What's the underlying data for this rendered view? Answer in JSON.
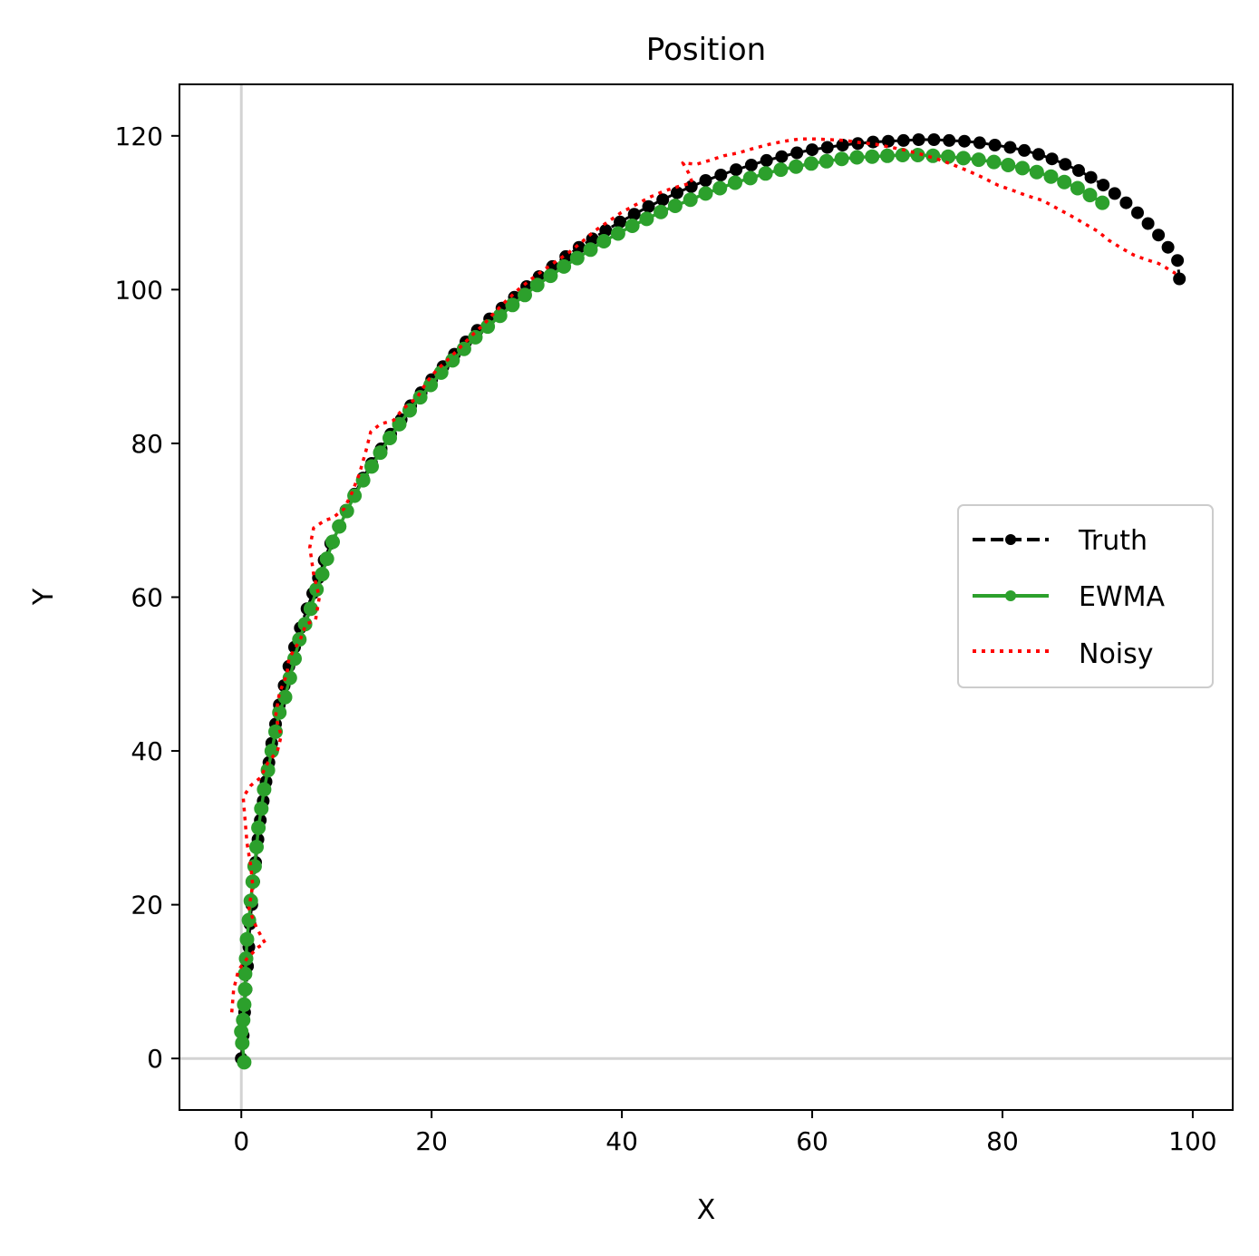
{
  "chart_data": {
    "type": "line",
    "title": "Position",
    "xlabel": "X",
    "ylabel": "Y",
    "xlim": [
      -6.5,
      104.2
    ],
    "ylim": [
      -6.7,
      126.7
    ],
    "xticks": [
      0,
      20,
      40,
      60,
      80,
      100
    ],
    "yticks": [
      0,
      20,
      40,
      60,
      80,
      100,
      120
    ],
    "grid": false,
    "reference_lines": {
      "x": 0,
      "y": 0,
      "color": "#d3d3d3"
    },
    "legend": {
      "position": "center-right",
      "entries": [
        "Truth",
        "EWMA",
        "Noisy"
      ]
    },
    "series": [
      {
        "name": "Truth",
        "color": "#000000",
        "style": "dashed-markers",
        "points": [
          [
            0.0,
            0.0
          ],
          [
            0.2,
            3.0
          ],
          [
            0.35,
            6.0
          ],
          [
            0.5,
            9.0
          ],
          [
            0.65,
            12.0
          ],
          [
            0.8,
            14.5
          ],
          [
            0.9,
            17.5
          ],
          [
            1.1,
            20.0
          ],
          [
            1.3,
            23.0
          ],
          [
            1.5,
            25.5
          ],
          [
            1.75,
            28.5
          ],
          [
            2.0,
            31.0
          ],
          [
            2.3,
            33.5
          ],
          [
            2.6,
            36.0
          ],
          [
            2.9,
            38.5
          ],
          [
            3.2,
            41.0
          ],
          [
            3.6,
            43.5
          ],
          [
            4.0,
            46.0
          ],
          [
            4.5,
            48.5
          ],
          [
            5.0,
            51.0
          ],
          [
            5.6,
            53.5
          ],
          [
            6.2,
            56.0
          ],
          [
            6.9,
            58.5
          ],
          [
            7.5,
            60.5
          ],
          [
            8.1,
            62.5
          ],
          [
            8.7,
            64.8
          ],
          [
            9.4,
            67.0
          ],
          [
            10.2,
            69.2
          ],
          [
            11.0,
            71.3
          ],
          [
            11.9,
            73.4
          ],
          [
            12.8,
            75.5
          ],
          [
            13.7,
            77.4
          ],
          [
            14.7,
            79.3
          ],
          [
            15.7,
            81.2
          ],
          [
            16.8,
            83.1
          ],
          [
            17.8,
            84.9
          ],
          [
            18.9,
            86.6
          ],
          [
            20.0,
            88.3
          ],
          [
            21.2,
            90.0
          ],
          [
            22.4,
            91.6
          ],
          [
            23.6,
            93.2
          ],
          [
            24.8,
            94.7
          ],
          [
            26.1,
            96.2
          ],
          [
            27.4,
            97.6
          ],
          [
            28.7,
            99.0
          ],
          [
            30.0,
            100.4
          ],
          [
            31.3,
            101.7
          ],
          [
            32.7,
            103.0
          ],
          [
            34.1,
            104.3
          ],
          [
            35.5,
            105.5
          ],
          [
            36.9,
            106.6
          ],
          [
            38.3,
            107.7
          ],
          [
            39.8,
            108.8
          ],
          [
            41.3,
            109.8
          ],
          [
            42.8,
            110.8
          ],
          [
            44.3,
            111.7
          ],
          [
            45.8,
            112.6
          ],
          [
            47.3,
            113.4
          ],
          [
            48.8,
            114.2
          ],
          [
            50.4,
            114.9
          ],
          [
            52.0,
            115.6
          ],
          [
            53.6,
            116.2
          ],
          [
            55.2,
            116.8
          ],
          [
            56.8,
            117.3
          ],
          [
            58.4,
            117.8
          ],
          [
            60.0,
            118.2
          ],
          [
            61.6,
            118.5
          ],
          [
            63.2,
            118.8
          ],
          [
            64.8,
            119.0
          ],
          [
            66.4,
            119.2
          ],
          [
            68.0,
            119.3
          ],
          [
            69.6,
            119.4
          ],
          [
            71.2,
            119.5
          ],
          [
            72.8,
            119.5
          ],
          [
            74.4,
            119.4
          ],
          [
            76.0,
            119.3
          ],
          [
            77.6,
            119.1
          ],
          [
            79.2,
            118.8
          ],
          [
            80.8,
            118.5
          ],
          [
            82.3,
            118.1
          ],
          [
            83.8,
            117.6
          ],
          [
            85.2,
            117.0
          ],
          [
            86.6,
            116.3
          ],
          [
            88.0,
            115.5
          ],
          [
            89.3,
            114.6
          ],
          [
            90.6,
            113.6
          ],
          [
            91.8,
            112.5
          ],
          [
            93.0,
            111.3
          ],
          [
            94.2,
            110.0
          ],
          [
            95.3,
            108.6
          ],
          [
            96.4,
            107.1
          ],
          [
            97.4,
            105.5
          ],
          [
            98.4,
            103.8
          ],
          [
            98.6,
            101.4
          ]
        ]
      },
      {
        "name": "EWMA",
        "color": "#2ca02c",
        "style": "solid-markers",
        "points": [
          [
            0.3,
            -0.5
          ],
          [
            0.1,
            2.0
          ],
          [
            0.0,
            3.5
          ],
          [
            0.2,
            5.0
          ],
          [
            0.3,
            7.0
          ],
          [
            0.4,
            9.0
          ],
          [
            0.4,
            11.0
          ],
          [
            0.5,
            13.0
          ],
          [
            0.6,
            15.5
          ],
          [
            0.8,
            18.0
          ],
          [
            1.0,
            20.5
          ],
          [
            1.2,
            23.0
          ],
          [
            1.4,
            25.0
          ],
          [
            1.6,
            27.5
          ],
          [
            1.8,
            30.0
          ],
          [
            2.1,
            32.5
          ],
          [
            2.4,
            35.0
          ],
          [
            2.8,
            37.5
          ],
          [
            3.2,
            40.0
          ],
          [
            3.6,
            42.5
          ],
          [
            4.0,
            45.0
          ],
          [
            4.6,
            47.0
          ],
          [
            5.1,
            49.5
          ],
          [
            5.6,
            52.0
          ],
          [
            6.1,
            54.5
          ],
          [
            6.7,
            56.5
          ],
          [
            7.3,
            58.5
          ],
          [
            7.9,
            61.0
          ],
          [
            8.5,
            63.0
          ],
          [
            9.0,
            65.0
          ],
          [
            9.6,
            67.2
          ],
          [
            10.3,
            69.2
          ],
          [
            11.1,
            71.2
          ],
          [
            11.9,
            73.2
          ],
          [
            12.8,
            75.2
          ],
          [
            13.7,
            77.0
          ],
          [
            14.6,
            78.8
          ],
          [
            15.6,
            80.7
          ],
          [
            16.6,
            82.5
          ],
          [
            17.7,
            84.3
          ],
          [
            18.8,
            86.0
          ],
          [
            19.9,
            87.6
          ],
          [
            21.0,
            89.2
          ],
          [
            22.2,
            90.8
          ],
          [
            23.4,
            92.3
          ],
          [
            24.6,
            93.8
          ],
          [
            25.9,
            95.2
          ],
          [
            27.2,
            96.6
          ],
          [
            28.5,
            98.0
          ],
          [
            29.8,
            99.3
          ],
          [
            31.1,
            100.6
          ],
          [
            32.5,
            101.8
          ],
          [
            33.9,
            103.0
          ],
          [
            35.3,
            104.1
          ],
          [
            36.7,
            105.2
          ],
          [
            38.1,
            106.3
          ],
          [
            39.6,
            107.3
          ],
          [
            41.1,
            108.3
          ],
          [
            42.6,
            109.2
          ],
          [
            44.1,
            110.1
          ],
          [
            45.6,
            110.9
          ],
          [
            47.2,
            111.7
          ],
          [
            48.8,
            112.5
          ],
          [
            50.3,
            113.2
          ],
          [
            51.9,
            113.9
          ],
          [
            53.5,
            114.5
          ],
          [
            55.1,
            115.1
          ],
          [
            56.7,
            115.6
          ],
          [
            58.3,
            116.0
          ],
          [
            59.9,
            116.4
          ],
          [
            61.5,
            116.7
          ],
          [
            63.1,
            117.0
          ],
          [
            64.7,
            117.2
          ],
          [
            66.3,
            117.3
          ],
          [
            67.9,
            117.4
          ],
          [
            69.5,
            117.5
          ],
          [
            71.1,
            117.5
          ],
          [
            72.7,
            117.4
          ],
          [
            74.3,
            117.3
          ],
          [
            75.9,
            117.1
          ],
          [
            77.5,
            116.9
          ],
          [
            79.1,
            116.6
          ],
          [
            80.6,
            116.2
          ],
          [
            82.1,
            115.8
          ],
          [
            83.6,
            115.3
          ],
          [
            85.1,
            114.7
          ],
          [
            86.5,
            114.0
          ],
          [
            87.9,
            113.2
          ],
          [
            89.2,
            112.3
          ],
          [
            90.5,
            111.3
          ]
        ]
      },
      {
        "name": "Noisy",
        "color": "#ff0000",
        "style": "dotted",
        "points": [
          [
            -1.0,
            6.0
          ],
          [
            -0.8,
            9.0
          ],
          [
            -0.3,
            11.5
          ],
          [
            0.6,
            13.0
          ],
          [
            1.8,
            14.5
          ],
          [
            2.5,
            15.0
          ],
          [
            1.6,
            17.0
          ],
          [
            0.8,
            19.5
          ],
          [
            1.2,
            22.5
          ],
          [
            1.0,
            25.0
          ],
          [
            0.6,
            28.0
          ],
          [
            0.4,
            31.0
          ],
          [
            0.2,
            34.0
          ],
          [
            1.0,
            35.5
          ],
          [
            2.0,
            36.5
          ],
          [
            2.8,
            38.5
          ],
          [
            3.8,
            40.0
          ],
          [
            4.2,
            42.0
          ],
          [
            3.6,
            44.5
          ],
          [
            4.0,
            47.5
          ],
          [
            4.8,
            50.0
          ],
          [
            5.0,
            52.0
          ],
          [
            6.2,
            54.5
          ],
          [
            6.8,
            56.5
          ],
          [
            7.8,
            57.0
          ],
          [
            8.2,
            60.0
          ],
          [
            7.6,
            63.0
          ],
          [
            7.2,
            66.5
          ],
          [
            7.6,
            69.0
          ],
          [
            8.8,
            70.0
          ],
          [
            9.6,
            70.3
          ],
          [
            10.8,
            71.5
          ],
          [
            11.6,
            73.5
          ],
          [
            12.4,
            76.0
          ],
          [
            13.1,
            79.0
          ],
          [
            13.6,
            81.5
          ],
          [
            14.6,
            82.5
          ],
          [
            16.0,
            83.0
          ],
          [
            17.0,
            84.5
          ],
          [
            18.5,
            86.0
          ],
          [
            19.5,
            88.0
          ],
          [
            20.5,
            89.5
          ],
          [
            21.8,
            91.0
          ],
          [
            23.0,
            92.5
          ],
          [
            24.2,
            94.0
          ],
          [
            25.5,
            95.5
          ],
          [
            26.6,
            97.0
          ],
          [
            27.8,
            98.5
          ],
          [
            29.1,
            100.0
          ],
          [
            30.3,
            101.2
          ],
          [
            31.6,
            102.4
          ],
          [
            33.0,
            103.6
          ],
          [
            34.4,
            104.8
          ],
          [
            35.8,
            106.2
          ],
          [
            37.1,
            107.6
          ],
          [
            38.5,
            108.8
          ],
          [
            39.9,
            110.0
          ],
          [
            41.4,
            111.0
          ],
          [
            42.9,
            112.0
          ],
          [
            44.4,
            112.8
          ],
          [
            45.9,
            113.4
          ],
          [
            47.4,
            113.9
          ],
          [
            47.0,
            115.2
          ],
          [
            46.4,
            116.5
          ],
          [
            47.8,
            116.3
          ],
          [
            49.2,
            116.8
          ],
          [
            50.7,
            117.4
          ],
          [
            52.3,
            117.8
          ],
          [
            53.9,
            118.4
          ],
          [
            55.5,
            118.9
          ],
          [
            57.1,
            119.3
          ],
          [
            58.7,
            119.6
          ],
          [
            60.3,
            119.6
          ],
          [
            61.9,
            119.5
          ],
          [
            63.5,
            119.4
          ],
          [
            65.1,
            119.1
          ],
          [
            66.7,
            118.9
          ],
          [
            68.3,
            118.5
          ],
          [
            69.9,
            118.1
          ],
          [
            71.5,
            117.6
          ],
          [
            73.1,
            117.0
          ],
          [
            74.7,
            116.3
          ],
          [
            76.3,
            115.5
          ],
          [
            77.9,
            114.6
          ],
          [
            79.5,
            113.6
          ],
          [
            81.1,
            112.9
          ],
          [
            82.6,
            112.2
          ],
          [
            84.2,
            111.6
          ],
          [
            85.7,
            110.6
          ],
          [
            87.2,
            109.6
          ],
          [
            88.6,
            108.6
          ],
          [
            90.0,
            107.6
          ],
          [
            91.2,
            106.4
          ],
          [
            92.5,
            105.4
          ],
          [
            93.8,
            104.5
          ],
          [
            95.1,
            103.9
          ],
          [
            96.4,
            103.4
          ],
          [
            97.4,
            102.7
          ],
          [
            98.2,
            102.1
          ]
        ]
      }
    ]
  }
}
